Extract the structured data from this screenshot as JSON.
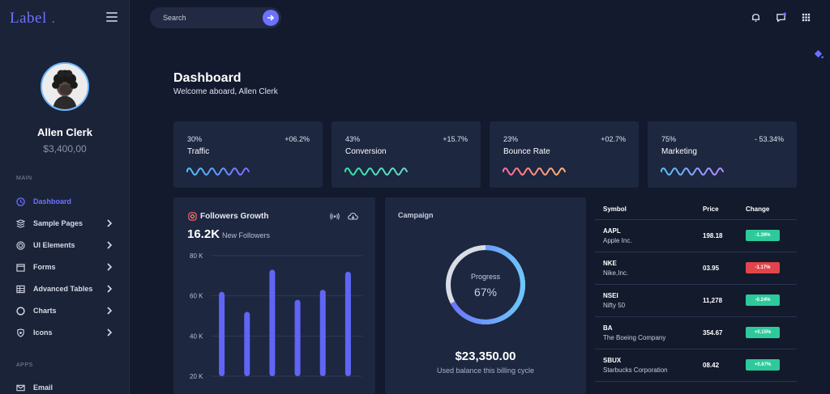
{
  "brand": {
    "logo_text": "Label",
    "dot": ".",
    "dot_color": "#ff4d4d",
    "accent": "#6c72ff"
  },
  "user": {
    "name": "Allen Clerk",
    "balance": "$3,400,00"
  },
  "sidebar": {
    "main_label": "MAIN",
    "apps_label": "APPS",
    "items": [
      {
        "label": "Dashboard",
        "icon": "dashboard-icon",
        "active": true
      },
      {
        "label": "Sample Pages",
        "icon": "sample-pages-icon",
        "has_submenu": true
      },
      {
        "label": "UI Elements",
        "icon": "ui-elements-icon",
        "has_submenu": true
      },
      {
        "label": "Forms",
        "icon": "forms-icon",
        "has_submenu": true
      },
      {
        "label": "Advanced Tables",
        "icon": "tables-icon",
        "has_submenu": true
      },
      {
        "label": "Charts",
        "icon": "charts-icon",
        "has_submenu": true
      },
      {
        "label": "Icons",
        "icon": "icons-icon",
        "has_submenu": true
      }
    ],
    "apps_items": [
      {
        "label": "Email",
        "icon": "email-icon"
      }
    ]
  },
  "search": {
    "placeholder": "Search"
  },
  "header": {
    "title": "Dashboard",
    "subtitle": "Welcome aboard, Allen Clerk"
  },
  "stats": [
    {
      "percent": "30%",
      "change": "+06.2%",
      "label": "Traffic",
      "colors": [
        "#4fc3f7",
        "#7b6cff"
      ]
    },
    {
      "percent": "43%",
      "change": "+15.7%",
      "label": "Conversion",
      "colors": [
        "#2ee6a8",
        "#6bd6c9"
      ]
    },
    {
      "percent": "23%",
      "change": "+02.7%",
      "label": "Bounce Rate",
      "colors": [
        "#ff6b9a",
        "#ffb36b"
      ]
    },
    {
      "percent": "75%",
      "change": "- 53.34%",
      "label": "Marketing",
      "colors": [
        "#4fc3f7",
        "#b98aff"
      ]
    }
  ],
  "followers": {
    "title": "Followers Growth",
    "count": "16.2K",
    "count_label": "New Followers"
  },
  "chart_data": {
    "type": "bar",
    "title": "Followers Growth",
    "values": [
      62,
      52,
      73,
      58,
      63,
      72
    ],
    "ylim": [
      20,
      80
    ],
    "yticks": [
      "20 K",
      "40 K",
      "60 K",
      "80 K"
    ],
    "ytick_values": [
      20,
      40,
      60,
      80
    ],
    "grid": true,
    "bar_color": "#6065f5"
  },
  "campaign": {
    "title": "Campaign",
    "progress_label": "Progress",
    "progress_value": "67%",
    "progress_fraction": 0.67,
    "amount": "$23,350.00",
    "amount_label": "Used balance this billing cycle"
  },
  "stocks": {
    "headers": {
      "symbol": "Symbol",
      "price": "Price",
      "change": "Change"
    },
    "rows": [
      {
        "symbol": "AAPL",
        "company": "Apple Inc.",
        "price": "198.18",
        "change": "-1.39%",
        "color": "#2ec99a"
      },
      {
        "symbol": "NKE",
        "company": "Nike,Inc.",
        "price": "03.95",
        "change": "-1.17%",
        "color": "#e0454b"
      },
      {
        "symbol": "NSEI",
        "company": "Nifty 50",
        "price": "11,278",
        "change": "-0.24%",
        "color": "#2ec99a"
      },
      {
        "symbol": "BA",
        "company": "The Boeing Company",
        "price": "354.67",
        "change": "+0.15%",
        "color": "#2ec99a"
      },
      {
        "symbol": "SBUX",
        "company": "Starbucks Corporation",
        "price": "08.42",
        "change": "+0.67%",
        "color": "#2ec99a"
      }
    ]
  }
}
